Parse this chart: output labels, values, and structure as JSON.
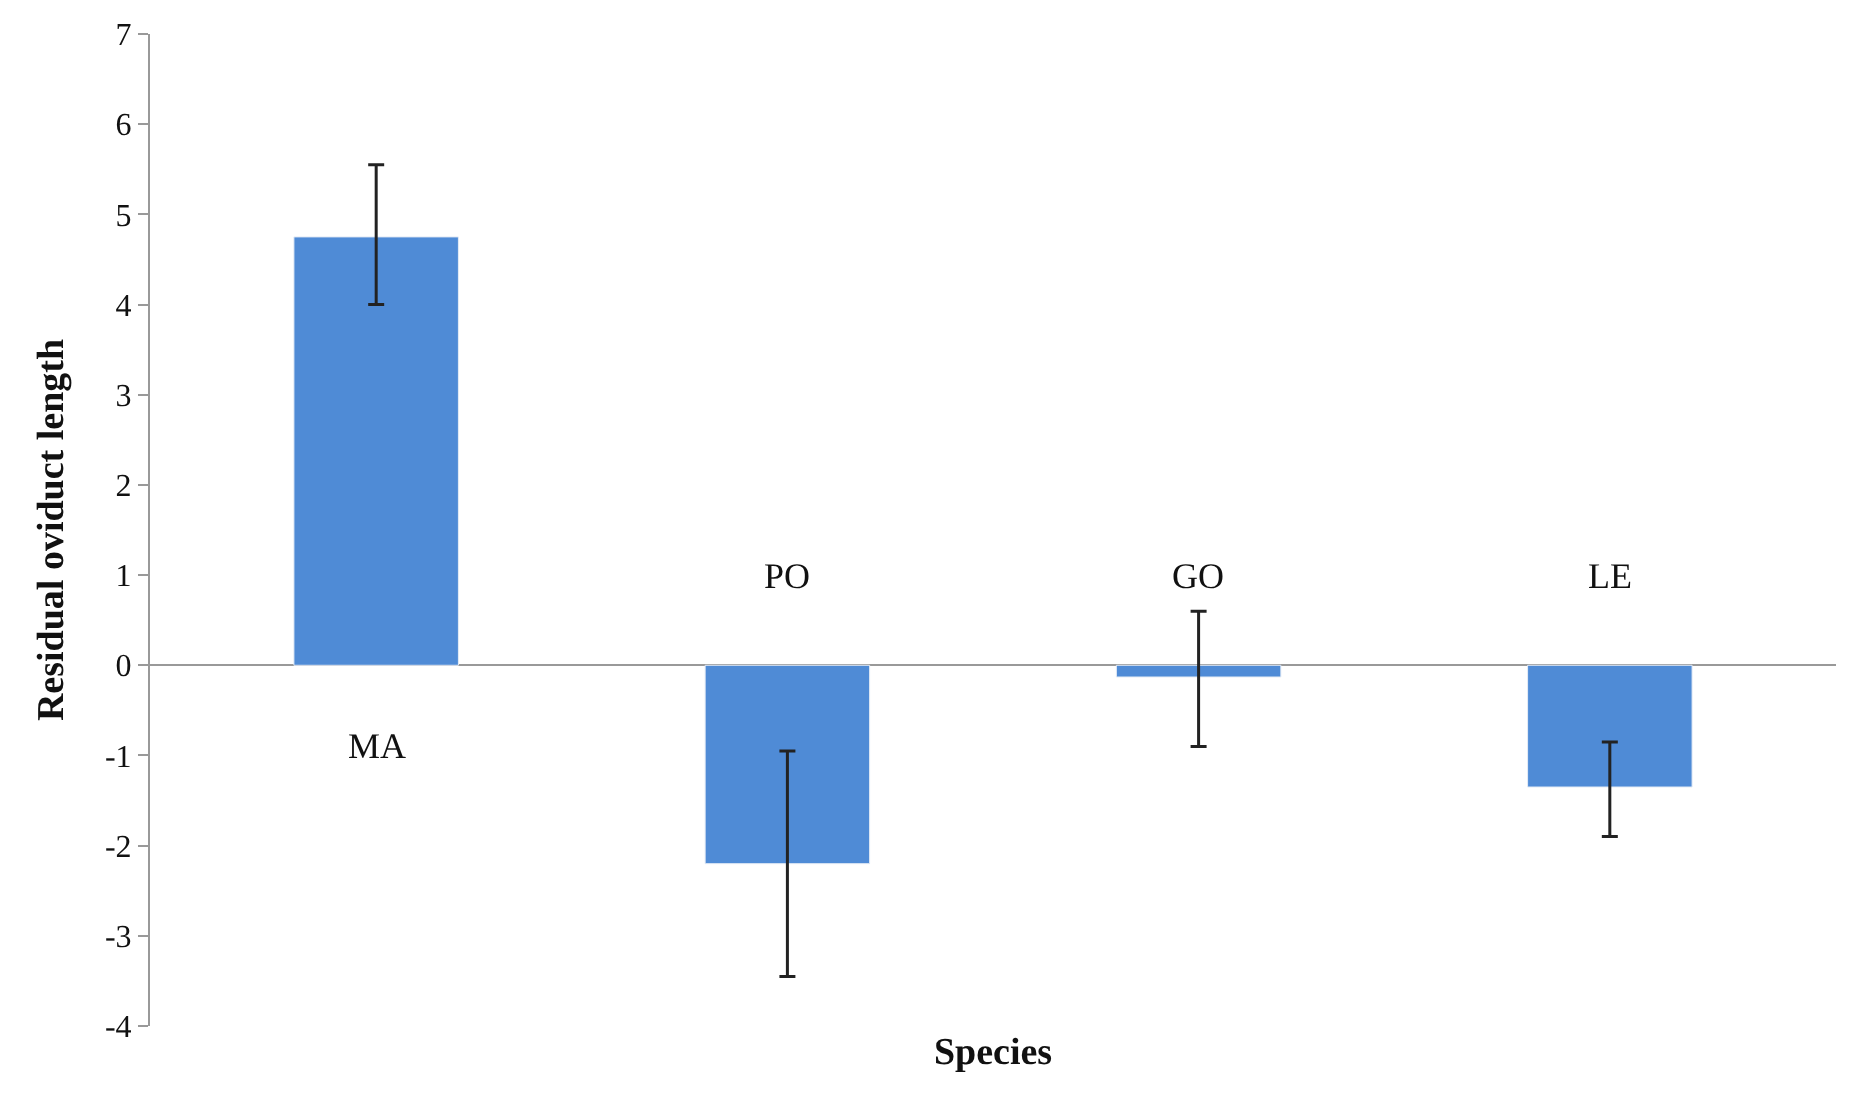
{
  "chart_data": {
    "type": "bar",
    "xlabel": "Species",
    "ylabel": "Residual oviduct length",
    "categories": [
      "MA",
      "PO",
      "GO",
      "LE"
    ],
    "values": [
      4.75,
      -2.2,
      -0.13,
      -1.35
    ],
    "errors": [
      [
        4.0,
        5.55
      ],
      [
        -3.45,
        -0.95
      ],
      [
        -0.9,
        0.6
      ],
      [
        -1.9,
        -0.85
      ]
    ],
    "color": "#4f8bd6",
    "ylim": [
      -4,
      7
    ],
    "yticks": [
      -4,
      -3,
      -2,
      -1,
      0,
      1,
      2,
      3,
      4,
      5,
      6,
      7
    ]
  }
}
